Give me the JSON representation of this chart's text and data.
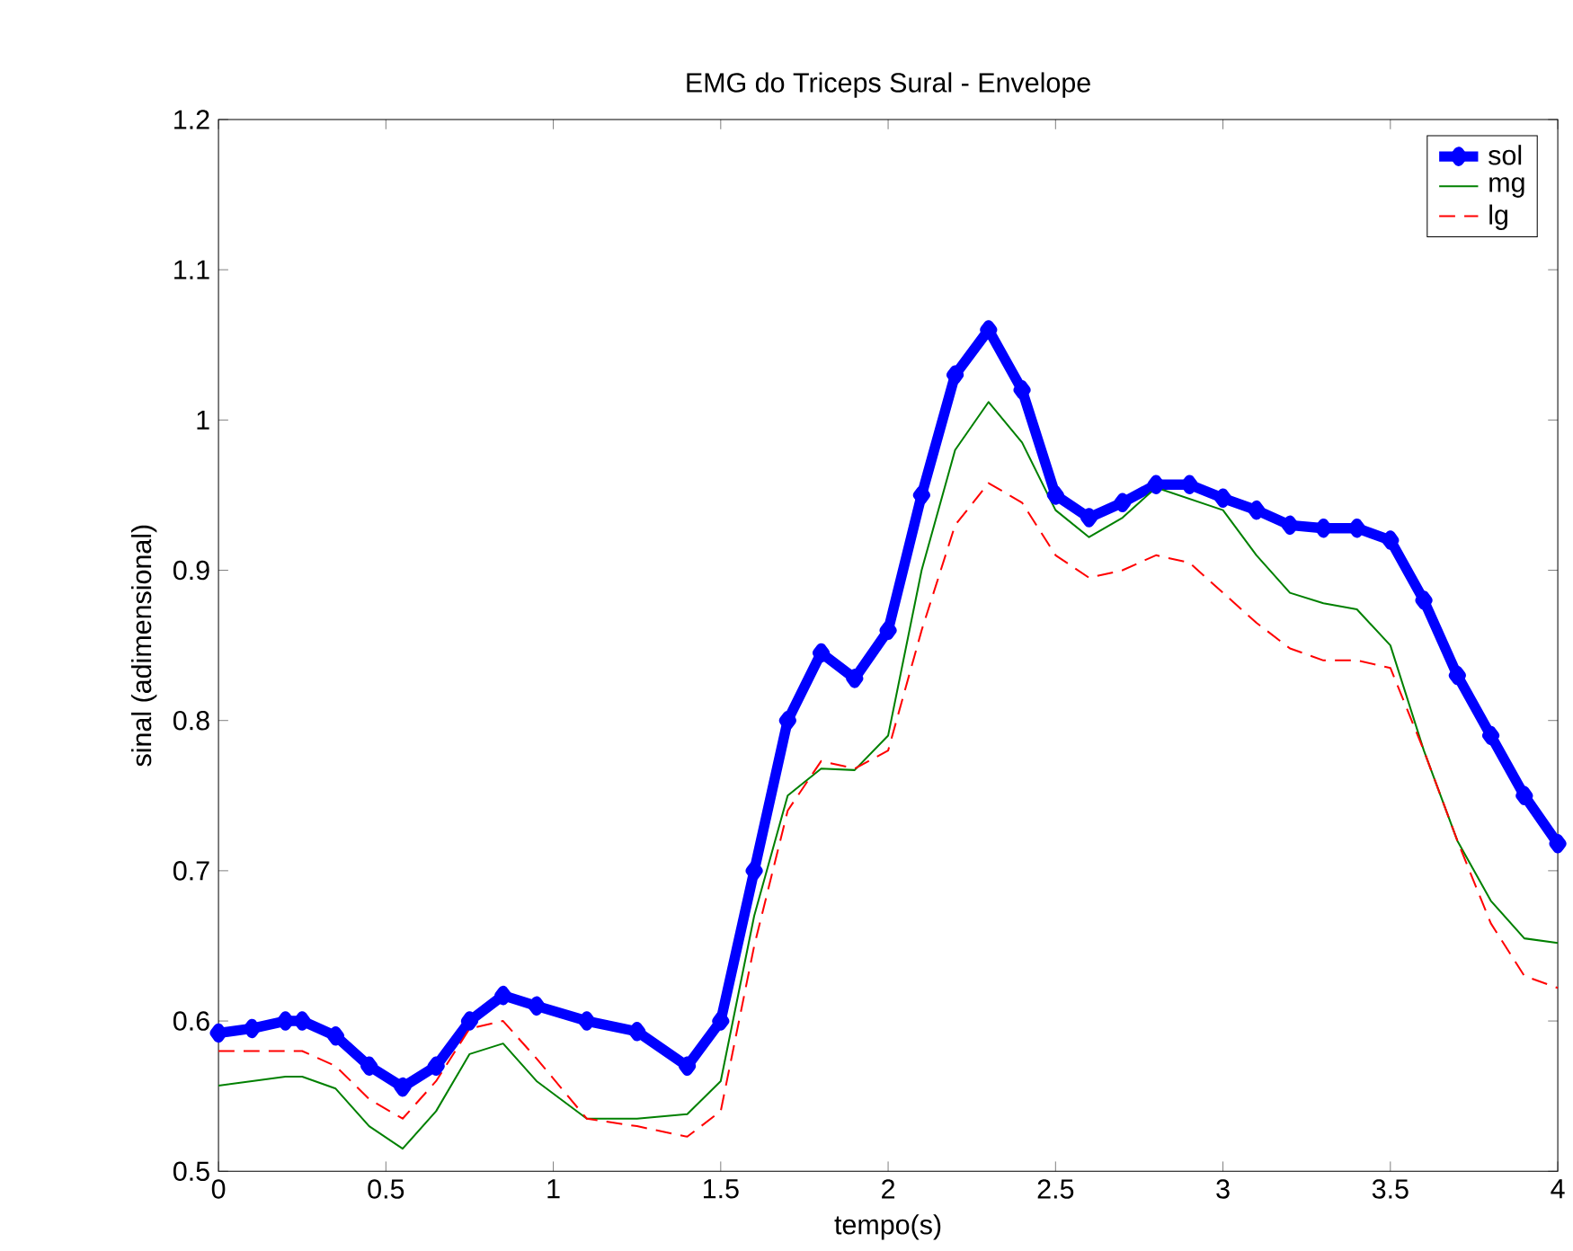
{
  "chart_data": {
    "type": "line",
    "title": "EMG do Triceps Sural - Envelope",
    "xlabel": "tempo(s)",
    "ylabel": "sinal (adimensional)",
    "x": [
      0,
      0.1,
      0.2,
      0.25,
      0.35,
      0.45,
      0.55,
      0.65,
      0.75,
      0.85,
      0.95,
      1.1,
      1.25,
      1.4,
      1.5,
      1.6,
      1.7,
      1.8,
      1.9,
      2.0,
      2.1,
      2.2,
      2.3,
      2.4,
      2.5,
      2.6,
      2.7,
      2.8,
      2.9,
      3.0,
      3.1,
      3.2,
      3.3,
      3.4,
      3.5,
      3.6,
      3.7,
      3.8,
      3.9,
      4.0
    ],
    "series": [
      {
        "name": "sol",
        "color": "#0000ff",
        "marker": "diamond",
        "line_style": "solid",
        "values": [
          0.592,
          0.595,
          0.6,
          0.6,
          0.59,
          0.57,
          0.556,
          0.57,
          0.6,
          0.617,
          0.61,
          0.6,
          0.593,
          0.57,
          0.6,
          0.7,
          0.8,
          0.845,
          0.828,
          0.86,
          0.95,
          1.03,
          1.06,
          1.02,
          0.95,
          0.935,
          0.945,
          0.957,
          0.957,
          0.948,
          0.94,
          0.93,
          0.928,
          0.928,
          0.92,
          0.88,
          0.83,
          0.79,
          0.75,
          0.718
        ]
      },
      {
        "name": "mg",
        "color": "#008000",
        "line_style": "solid",
        "values": [
          0.557,
          0.56,
          0.563,
          0.563,
          0.555,
          0.53,
          0.515,
          0.54,
          0.578,
          0.585,
          0.56,
          0.535,
          0.535,
          0.538,
          0.56,
          0.67,
          0.75,
          0.768,
          0.767,
          0.79,
          0.9,
          0.98,
          1.012,
          0.985,
          0.94,
          0.922,
          0.935,
          0.955,
          null,
          0.94,
          0.91,
          0.885,
          0.878,
          0.874,
          0.85,
          0.78,
          0.72,
          0.68,
          0.655,
          0.652
        ]
      },
      {
        "name": "lg",
        "color": "#ff0000",
        "line_style": "dashed",
        "values": [
          0.58,
          0.58,
          0.58,
          0.58,
          0.57,
          0.548,
          0.535,
          0.56,
          0.595,
          0.6,
          0.575,
          0.535,
          0.53,
          0.523,
          0.54,
          0.65,
          0.74,
          0.773,
          0.768,
          0.78,
          0.86,
          0.93,
          0.958,
          0.945,
          0.91,
          0.895,
          0.9,
          0.91,
          0.905,
          0.885,
          0.865,
          0.848,
          0.84,
          0.84,
          0.835,
          0.78,
          0.72,
          0.665,
          0.63,
          0.622
        ]
      }
    ],
    "xlim": [
      0,
      4
    ],
    "ylim": [
      0.5,
      1.2
    ],
    "xticks": [
      0,
      0.5,
      1,
      1.5,
      2,
      2.5,
      3,
      3.5,
      4
    ],
    "yticks": [
      0.5,
      0.6,
      0.7,
      0.8,
      0.9,
      1,
      1.1,
      1.2
    ],
    "grid": false,
    "legend": "top right"
  }
}
